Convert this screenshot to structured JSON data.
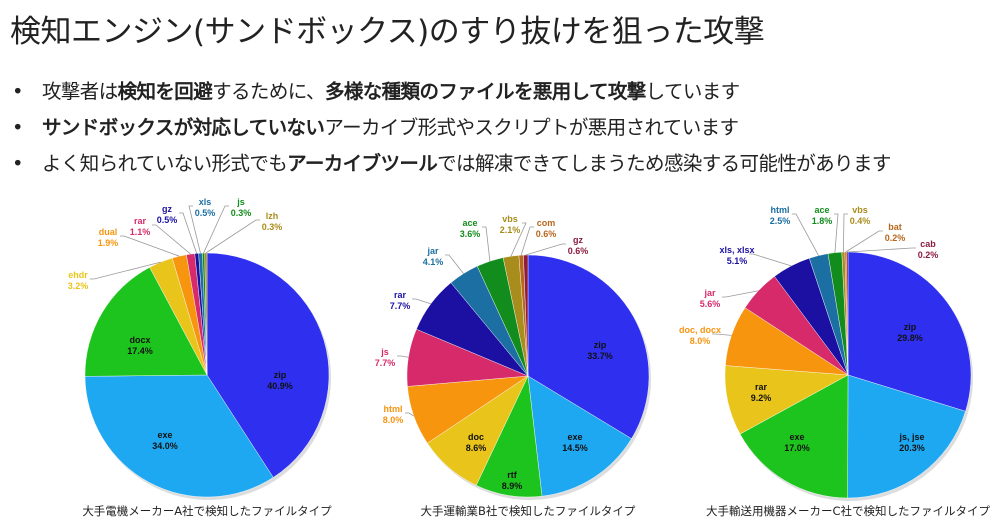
{
  "title": "検知エンジン(サンドボックス)のすり抜けを狙った攻撃",
  "bullets": [
    [
      {
        "t": "攻撃者は",
        "b": false
      },
      {
        "t": "検知を回避",
        "b": true
      },
      {
        "t": "するために、",
        "b": false
      },
      {
        "t": "多様な種類のファイルを悪用して攻撃",
        "b": true
      },
      {
        "t": "しています",
        "b": false
      }
    ],
    [
      {
        "t": "サンドボックスが対応していない",
        "b": true
      },
      {
        "t": "アーカイブ形式やスクリプトが悪用されています",
        "b": false
      }
    ],
    [
      {
        "t": "よく知られていない形式でも",
        "b": false
      },
      {
        "t": "アーカイブツール",
        "b": true
      },
      {
        "t": "では解凍できてしまうため感染する可能性があります",
        "b": false
      }
    ]
  ],
  "bullet_marker": "•",
  "chart_data": [
    {
      "type": "pie",
      "title": "大手電機メーカーA社で検知したファイルタイプ",
      "slices": [
        {
          "label": "zip",
          "value": 40.9,
          "text": "40.9%",
          "color": "#2f2ff0"
        },
        {
          "label": "exe",
          "value": 34.0,
          "text": "34.0%",
          "color": "#1ea8f2"
        },
        {
          "label": "docx",
          "value": 17.4,
          "text": "17.4%",
          "color": "#1ec41e"
        },
        {
          "label": "ehdr",
          "value": 3.2,
          "text": "3.2%",
          "color": "#e9c51c"
        },
        {
          "label": "dual",
          "value": 1.9,
          "text": "1.9%",
          "color": "#f7950f"
        },
        {
          "label": "rar",
          "value": 1.1,
          "text": "1.1%",
          "color": "#d62a6a"
        },
        {
          "label": "gz",
          "value": 0.5,
          "text": "0.5%",
          "color": "#1c10a3"
        },
        {
          "label": "xls",
          "value": 0.5,
          "text": "0.5%",
          "color": "#1b6fa3"
        },
        {
          "label": "js",
          "value": 0.3,
          "text": "0.3%",
          "color": "#128c1c"
        },
        {
          "label": "lzh",
          "value": 0.3,
          "text": "0.3%",
          "color": "#a88d1c"
        }
      ]
    },
    {
      "type": "pie",
      "title": "大手運輸業B社で検知したファイルタイプ",
      "slices": [
        {
          "label": "zip",
          "value": 33.7,
          "text": "33.7%",
          "color": "#2f2ff0"
        },
        {
          "label": "exe",
          "value": 14.5,
          "text": "14.5%",
          "color": "#1ea8f2"
        },
        {
          "label": "rtf",
          "value": 8.9,
          "text": "8.9%",
          "color": "#1ec41e"
        },
        {
          "label": "doc",
          "value": 8.6,
          "text": "8.6%",
          "color": "#e9c51c"
        },
        {
          "label": "html",
          "value": 8.0,
          "text": "8.0%",
          "color": "#f7950f"
        },
        {
          "label": "js",
          "value": 7.7,
          "text": "7.7%",
          "color": "#d62a6a"
        },
        {
          "label": "rar",
          "value": 7.7,
          "text": "7.7%",
          "color": "#1c10a3"
        },
        {
          "label": "jar",
          "value": 4.1,
          "text": "4.1%",
          "color": "#1b6fa3"
        },
        {
          "label": "ace",
          "value": 3.6,
          "text": "3.6%",
          "color": "#128c1c"
        },
        {
          "label": "vbs",
          "value": 2.1,
          "text": "2.1%",
          "color": "#a88d1c"
        },
        {
          "label": "com",
          "value": 0.6,
          "text": "0.6%",
          "color": "#b8661d"
        },
        {
          "label": "gz",
          "value": 0.6,
          "text": "0.6%",
          "color": "#8c1c3e"
        }
      ]
    },
    {
      "type": "pie",
      "title": "大手輸送用機器メーカーC社で検知したファイルタイプ",
      "slices": [
        {
          "label": "zip",
          "value": 29.8,
          "text": "29.8%",
          "color": "#2f2ff0"
        },
        {
          "label": "js, jse",
          "value": 20.3,
          "text": "20.3%",
          "color": "#1ea8f2"
        },
        {
          "label": "exe",
          "value": 17.0,
          "text": "17.0%",
          "color": "#1ec41e"
        },
        {
          "label": "rar",
          "value": 9.2,
          "text": "9.2%",
          "color": "#e9c51c"
        },
        {
          "label": "doc, docx",
          "value": 8.0,
          "text": "8.0%",
          "color": "#f7950f"
        },
        {
          "label": "jar",
          "value": 5.6,
          "text": "5.6%",
          "color": "#d62a6a"
        },
        {
          "label": "xls, xlsx",
          "value": 5.1,
          "text": "5.1%",
          "color": "#1c10a3"
        },
        {
          "label": "html",
          "value": 2.5,
          "text": "2.5%",
          "color": "#1b6fa3"
        },
        {
          "label": "ace",
          "value": 1.8,
          "text": "1.8%",
          "color": "#128c1c"
        },
        {
          "label": "vbs",
          "value": 0.4,
          "text": "0.4%",
          "color": "#a88d1c"
        },
        {
          "label": "bat",
          "value": 0.2,
          "text": "0.2%",
          "color": "#b8661d"
        },
        {
          "label": "cab",
          "value": 0.2,
          "text": "0.2%",
          "color": "#8c1c3e"
        }
      ]
    }
  ]
}
